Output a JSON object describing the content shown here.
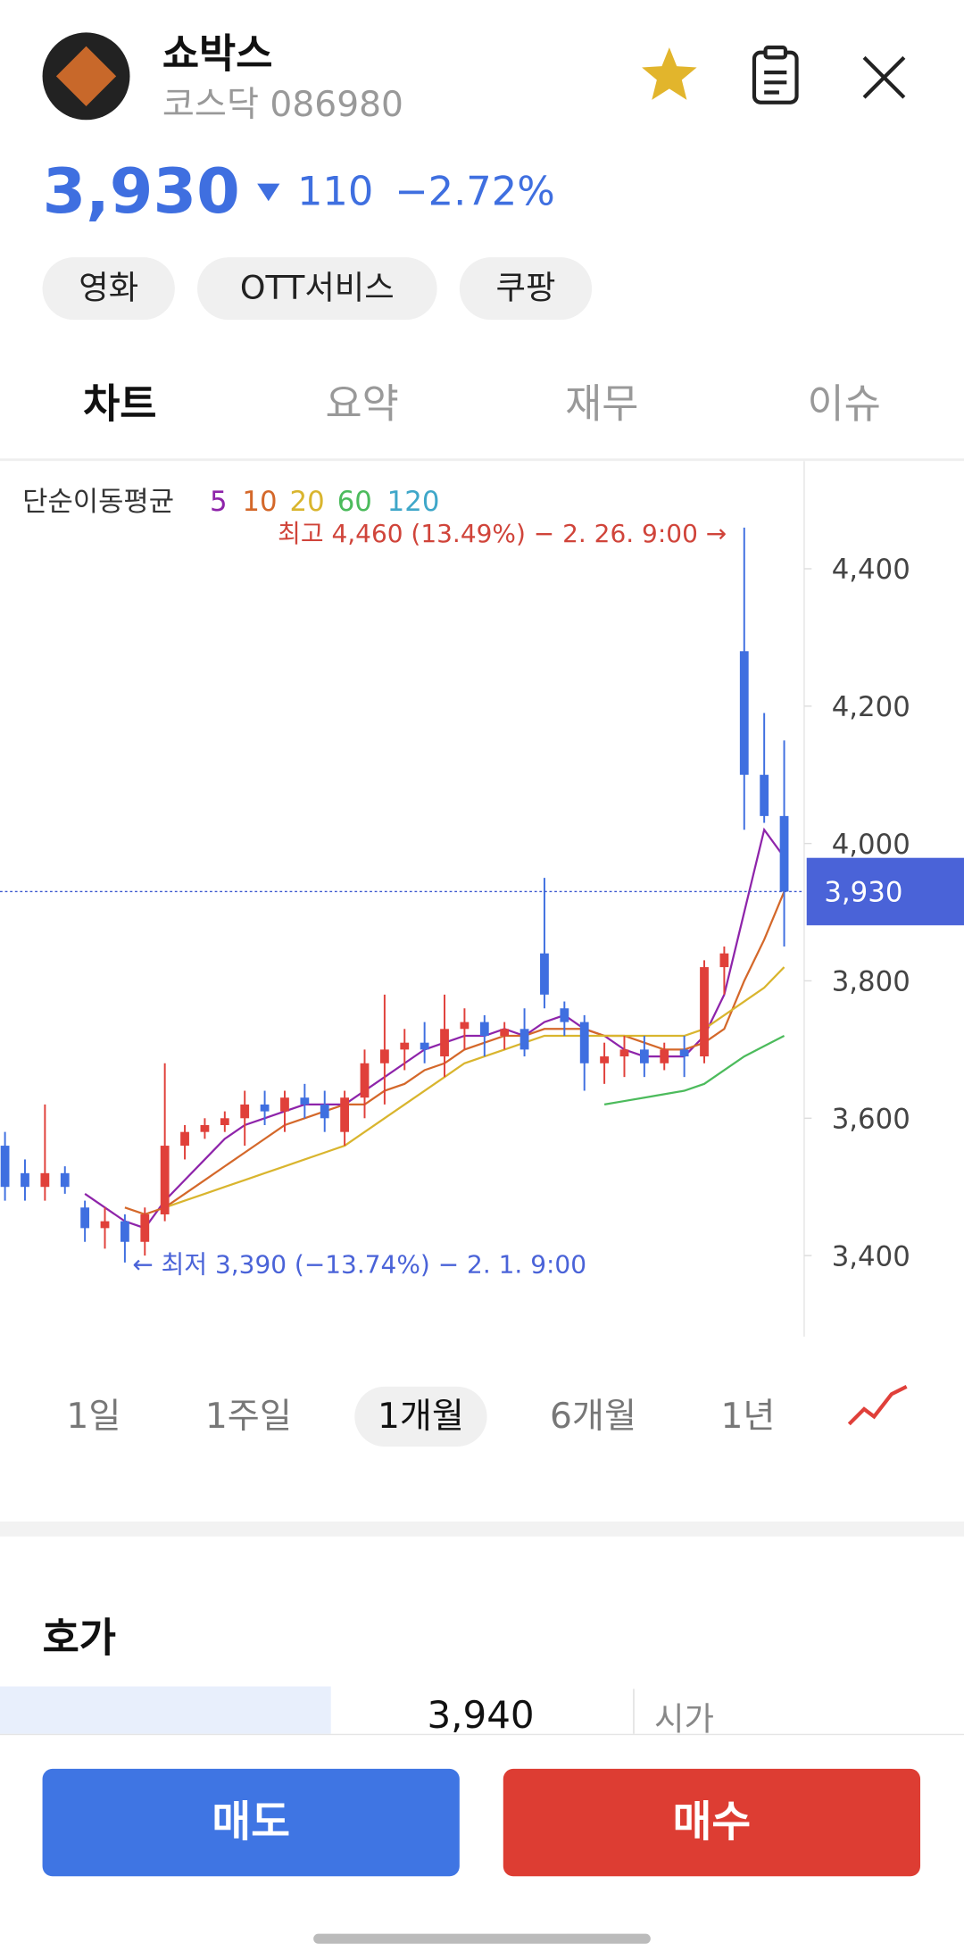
{
  "header": {
    "name": "쇼박스",
    "market": "코스닥 086980",
    "price": "3,930",
    "change": "110",
    "change_pct": "−2.72%"
  },
  "tags": [
    "영화",
    "OTT서비스",
    "쿠팡"
  ],
  "tabs": [
    "차트",
    "요약",
    "재무",
    "이슈"
  ],
  "periods": [
    "1일",
    "1주일",
    "1개월",
    "6개월",
    "1년"
  ],
  "orderbook": {
    "title": "호가",
    "price": "3,940",
    "open_label": "시가"
  },
  "buttons": {
    "sell": "매도",
    "buy": "매수"
  },
  "chart_data": {
    "type": "candlestick",
    "ma_title": "단순이동평균",
    "ma_labels": [
      "5",
      "10",
      "20",
      "60",
      "120"
    ],
    "ma_colors": [
      "#8e24aa",
      "#d4682a",
      "#d9b52e",
      "#4cbb5c",
      "#3fa7c9"
    ],
    "annotations": [
      "최고 4,460 (13.49%) − 2. 26. 9:00 →",
      "← 최저 3,390 (−13.74%) − 2. 1. 9:00"
    ],
    "up_color": "#e0403a",
    "down_color": "#3f6fe0",
    "ylim": [
      3282,
      4557
    ],
    "yticks": [
      {
        "value": 3400,
        "label": "3,400"
      },
      {
        "value": 3600,
        "label": "3,600"
      },
      {
        "value": 3800,
        "label": "3,800"
      },
      {
        "value": 4000,
        "label": "4,000"
      },
      {
        "value": 4200,
        "label": "4,200"
      },
      {
        "value": 4400,
        "label": "4,400"
      }
    ],
    "current_price": {
      "value": 3930,
      "label": "3,930"
    },
    "open": [
      3560,
      3520,
      3500,
      3520,
      3470,
      3440,
      3450,
      3420,
      3460,
      3560,
      3580,
      3590,
      3600,
      3620,
      3610,
      3630,
      3620,
      3580,
      3630,
      3680,
      3700,
      3710,
      3690,
      3730,
      3740,
      3720,
      3730,
      3840,
      3760,
      3740,
      3680,
      3690,
      3700,
      3680,
      3700,
      3690,
      3820,
      4280,
      4100,
      4040
    ],
    "high": [
      3580,
      3540,
      3620,
      3530,
      3480,
      3470,
      3460,
      3470,
      3680,
      3590,
      3600,
      3610,
      3640,
      3640,
      3640,
      3650,
      3640,
      3640,
      3700,
      3780,
      3730,
      3740,
      3780,
      3760,
      3750,
      3740,
      3760,
      3950,
      3770,
      3750,
      3710,
      3720,
      3720,
      3710,
      3720,
      3830,
      3850,
      4460,
      4190,
      4150
    ],
    "low": [
      3480,
      3480,
      3480,
      3490,
      3420,
      3410,
      3390,
      3400,
      3450,
      3540,
      3570,
      3580,
      3560,
      3590,
      3580,
      3600,
      3580,
      3560,
      3600,
      3620,
      3670,
      3680,
      3660,
      3700,
      3690,
      3700,
      3690,
      3760,
      3720,
      3640,
      3650,
      3660,
      3660,
      3670,
      3660,
      3680,
      3780,
      4020,
      4030,
      3850
    ],
    "close": [
      3500,
      3500,
      3520,
      3500,
      3440,
      3450,
      3420,
      3460,
      3560,
      3580,
      3590,
      3600,
      3620,
      3610,
      3630,
      3620,
      3600,
      3630,
      3680,
      3700,
      3710,
      3700,
      3730,
      3740,
      3720,
      3730,
      3700,
      3780,
      3740,
      3680,
      3690,
      3700,
      3680,
      3700,
      3690,
      3820,
      3840,
      4100,
      4040,
      3930
    ],
    "ma": [
      [
        null,
        null,
        null,
        null,
        3490,
        3470,
        3450,
        3440,
        3480,
        3510,
        3540,
        3570,
        3590,
        3600,
        3610,
        3620,
        3620,
        3620,
        3640,
        3660,
        3680,
        3700,
        3710,
        3720,
        3720,
        3730,
        3720,
        3740,
        3750,
        3730,
        3720,
        3700,
        3690,
        3690,
        3690,
        3720,
        3780,
        3900,
        4020,
        3980
      ],
      [
        null,
        null,
        null,
        null,
        null,
        null,
        3470,
        3460,
        3470,
        3490,
        3510,
        3530,
        3550,
        3570,
        3590,
        3600,
        3610,
        3620,
        3620,
        3640,
        3650,
        3670,
        3680,
        3700,
        3710,
        3720,
        3720,
        3730,
        3730,
        3730,
        3720,
        3720,
        3710,
        3700,
        3700,
        3710,
        3730,
        3800,
        3860,
        3930
      ],
      [
        null,
        null,
        null,
        null,
        null,
        null,
        null,
        null,
        3470,
        3480,
        3490,
        3500,
        3510,
        3520,
        3530,
        3540,
        3550,
        3560,
        3580,
        3600,
        3620,
        3640,
        3660,
        3680,
        3690,
        3700,
        3710,
        3720,
        3720,
        3720,
        3720,
        3720,
        3720,
        3720,
        3720,
        3730,
        3750,
        3770,
        3790,
        3820
      ],
      [
        null,
        null,
        null,
        null,
        null,
        null,
        null,
        null,
        null,
        null,
        null,
        null,
        null,
        null,
        null,
        null,
        null,
        null,
        null,
        null,
        null,
        null,
        null,
        null,
        null,
        null,
        null,
        null,
        null,
        null,
        3620,
        3625,
        3630,
        3635,
        3640,
        3650,
        3670,
        3690,
        3705,
        3720
      ]
    ]
  }
}
